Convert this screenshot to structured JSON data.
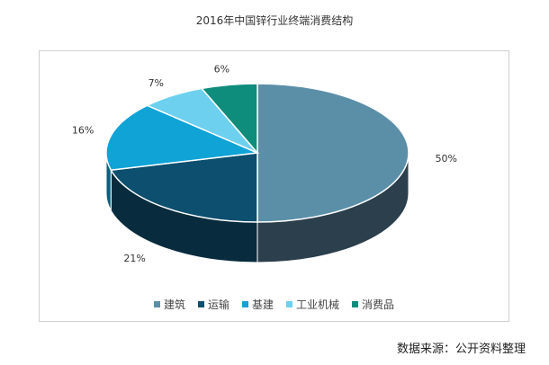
{
  "chart_data": {
    "type": "pie",
    "title": "2016年中国锌行业终端消费结构",
    "categories": [
      "建筑",
      "运输",
      "基建",
      "工业机械",
      "消费品"
    ],
    "values": [
      50,
      21,
      16,
      7,
      6
    ],
    "value_labels": [
      "50%",
      "21%",
      "16%",
      "7%",
      "6%"
    ],
    "colors": [
      "#5b8fa8",
      "#0c4f6e",
      "#0fa3d6",
      "#6dd0ef",
      "#0e8c7c"
    ],
    "side_colors": [
      "#2b3f4d",
      "#082c3e",
      "#0a5f7e",
      "#3e8aa2",
      "#085a50"
    ],
    "legend_position": "bottom",
    "three_d": true
  },
  "source_note": "数据来源：公开资料整理"
}
